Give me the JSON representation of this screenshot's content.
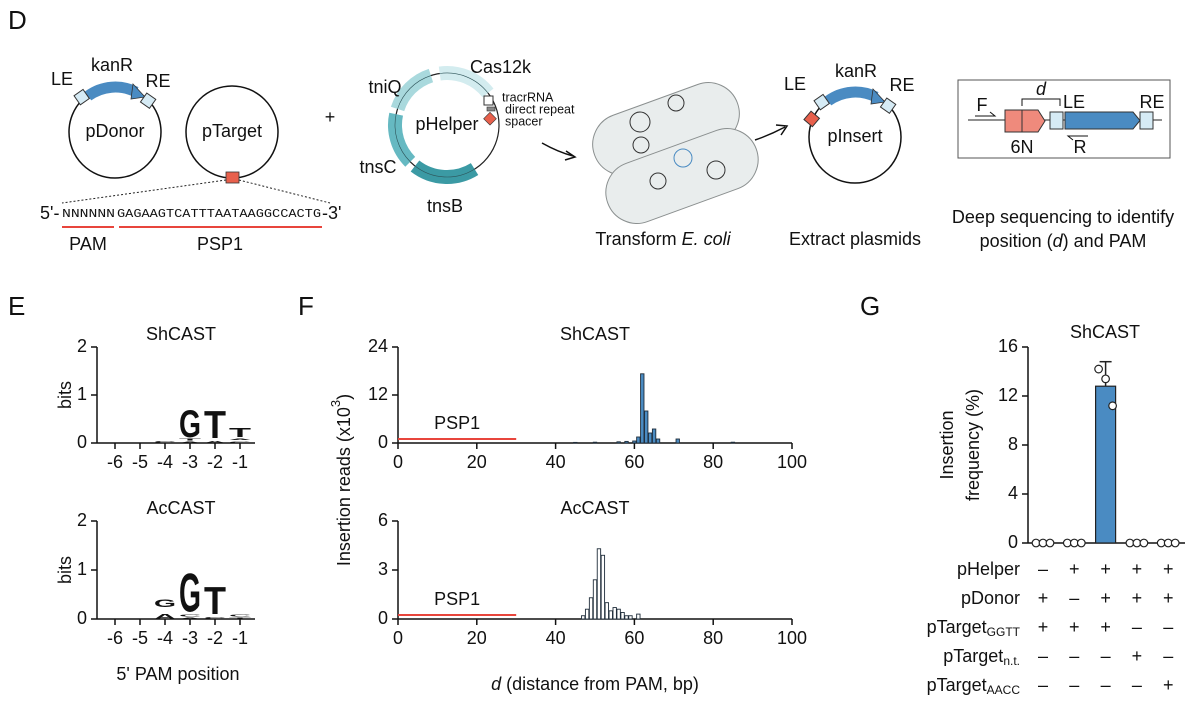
{
  "panel_labels": [
    "D",
    "E",
    "F",
    "G"
  ],
  "diagram": {
    "pdonor": {
      "le": "LE",
      "kanr": "kanR",
      "re": "RE",
      "name": "pDonor"
    },
    "ptarget": {
      "name": "pTarget",
      "seq_start": "5'-",
      "pam_seq": "NNNNNN",
      "psp_seq": "GAGAAGTCATTTAATAAGGCCACTG",
      "seq_end": "-3'",
      "pam": "PAM",
      "psp": "PSP1"
    },
    "plus": "+",
    "phelper": {
      "name": "pHelper",
      "tniq": "tniQ",
      "cas12k": "Cas12k",
      "tracrrna": "tracrRNA",
      "direct_repeat": "direct repeat",
      "spacer": "spacer",
      "tnsc": "tnsC",
      "tnsb": "tnsB"
    },
    "transform": [
      "Transform ",
      "E. coli"
    ],
    "pinsert": {
      "le": "LE",
      "kanr": "kanR",
      "re": "RE",
      "name": "pInsert"
    },
    "extract": "Extract plasmids",
    "amplicon": {
      "f": "F",
      "d": "d",
      "le": "LE",
      "re": "RE",
      "n6": "6N",
      "r": "R"
    },
    "sequencing": [
      "Deep sequencing to identify",
      "position (",
      "d",
      ") and PAM"
    ]
  },
  "chart_data": [
    {
      "type": "logo",
      "title": "ShCAST",
      "ylabel": "bits",
      "categories": [
        "-6",
        "-5",
        "-4",
        "-3",
        "-2",
        "-1"
      ],
      "stacks": [
        [],
        [],
        [
          {
            "letter": "C",
            "bits": 0.08
          }
        ],
        [
          {
            "letter": "A",
            "bits": 0.05
          },
          {
            "letter": "T",
            "bits": 0.08
          },
          {
            "letter": "G",
            "bits": 1.3
          }
        ],
        [
          {
            "letter": "A",
            "bits": 0.1
          },
          {
            "letter": "T",
            "bits": 1.3
          }
        ],
        [
          {
            "letter": "C",
            "bits": 0.06
          },
          {
            "letter": "A",
            "bits": 0.06
          },
          {
            "letter": "T",
            "bits": 0.45
          }
        ]
      ],
      "ylim": [
        0,
        2
      ],
      "yticks": [
        0,
        1,
        2
      ],
      "colors": {
        "A": "#4daf4a",
        "C": "#3a75c4",
        "G": "#f2a62a",
        "T": "#e8453c"
      }
    },
    {
      "type": "logo",
      "title": "AcCAST",
      "ylabel": "bits",
      "xlabel": "5' PAM position",
      "categories": [
        "-6",
        "-5",
        "-4",
        "-3",
        "-2",
        "-1"
      ],
      "stacks": [
        [],
        [],
        [
          {
            "letter": "A",
            "bits": 0.25
          },
          {
            "letter": "G",
            "bits": 0.35
          }
        ],
        [
          {
            "letter": "A",
            "bits": 0.05
          },
          {
            "letter": "C",
            "bits": 0.1
          },
          {
            "letter": "G",
            "bits": 1.82
          }
        ],
        [
          {
            "letter": "C",
            "bits": 0.1
          },
          {
            "letter": "T",
            "bits": 1.3
          }
        ],
        [
          {
            "letter": "T",
            "bits": 0.05
          },
          {
            "letter": "C",
            "bits": 0.1
          }
        ]
      ],
      "ylim": [
        0,
        2
      ],
      "yticks": [
        0,
        1,
        2
      ],
      "colors": {
        "A": "#4daf4a",
        "C": "#3a75c4",
        "G": "#f2a62a",
        "T": "#e8453c"
      }
    },
    {
      "type": "hist",
      "title": "ShCAST",
      "ylabel": {
        "main": "Insertion reads (x10",
        "sup": "3",
        "end": ")"
      },
      "x": [
        45,
        50,
        56,
        58,
        60,
        61,
        62,
        63,
        64,
        65,
        66,
        71,
        85
      ],
      "values": [
        0.15,
        0.2,
        0.3,
        0.4,
        0.5,
        1.5,
        17.3,
        8.0,
        2.5,
        3.5,
        1.0,
        1.0,
        0.2
      ],
      "color": "#4a8bc2",
      "edge": "#1f2d3a",
      "annotation": {
        "text": "PSP1",
        "span": [
          0,
          30
        ],
        "color": "#e8453c"
      },
      "xlim": [
        0,
        100
      ],
      "xticks": [
        0,
        20,
        40,
        60,
        80,
        100
      ],
      "ylim": [
        0,
        24
      ],
      "yticks": [
        0,
        12,
        24
      ]
    },
    {
      "type": "hist",
      "title": "AcCAST",
      "xlabel": {
        "italic": "d",
        "rest": " (distance from PAM, bp)"
      },
      "x": [
        47,
        48,
        49,
        50,
        51,
        52,
        53,
        54,
        55,
        56,
        57,
        58,
        59,
        61
      ],
      "values": [
        0.2,
        0.6,
        1.3,
        2.4,
        4.3,
        3.9,
        1.0,
        0.5,
        0.7,
        0.6,
        0.4,
        0.2,
        0.2,
        0.3
      ],
      "color": "#ffffff",
      "edge": "#1f2d3a",
      "annotation": {
        "text": "PSP1",
        "span": [
          0,
          30
        ],
        "color": "#e8453c"
      },
      "xlim": [
        0,
        100
      ],
      "xticks": [
        0,
        20,
        40,
        60,
        80,
        100
      ],
      "ylim": [
        0,
        6
      ],
      "yticks": [
        0,
        3,
        6
      ]
    },
    {
      "type": "bar",
      "title": "ShCAST",
      "ylabel": [
        "Insertion",
        "frequency (%)"
      ],
      "categories": [
        null,
        null,
        null,
        null,
        null
      ],
      "values": [
        0,
        0,
        12.8,
        0,
        0
      ],
      "errors": [
        0,
        0,
        2.0,
        0,
        0
      ],
      "points": [
        [
          0,
          0,
          0
        ],
        [
          0,
          0,
          0
        ],
        [
          14.2,
          13.4,
          11.2
        ],
        [
          0,
          0,
          0
        ],
        [
          0,
          0,
          0
        ]
      ],
      "color": "#4a8bc2",
      "ylim": [
        0,
        16
      ],
      "yticks": [
        0,
        4,
        8,
        12,
        16
      ],
      "conditions": [
        {
          "label": "pHelper",
          "signs": [
            "–",
            "+",
            "+",
            "+",
            "+"
          ]
        },
        {
          "label": "pDonor",
          "signs": [
            "+",
            "–",
            "+",
            "+",
            "+"
          ]
        },
        {
          "label": "pTarget",
          "sub": "GGTT",
          "signs": [
            "+",
            "+",
            "+",
            "–",
            "–"
          ]
        },
        {
          "label": "pTarget",
          "sub": "n.t.",
          "signs": [
            "–",
            "–",
            "–",
            "+",
            "–"
          ]
        },
        {
          "label": "pTarget",
          "sub": "AACC",
          "signs": [
            "–",
            "–",
            "–",
            "–",
            "+"
          ]
        }
      ]
    }
  ]
}
